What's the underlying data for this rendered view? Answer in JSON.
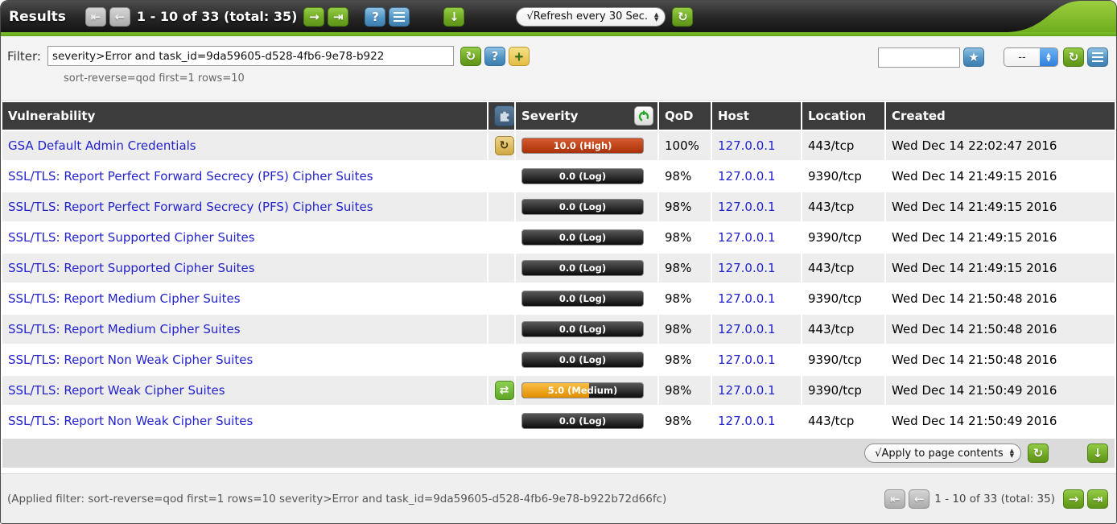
{
  "icons": {
    "first": "⇤",
    "prev": "←",
    "next": "→",
    "last": "⇥",
    "help": "?",
    "download": "↓",
    "refresh": "↻",
    "star": "★",
    "new_note": "+",
    "workaround": "↻",
    "mitigate": "⇄"
  },
  "colors": {
    "accent_green": "#6fa822",
    "severity_high": "#c0401a",
    "severity_medium": "#f0a519",
    "severity_log": "#1a1a1a",
    "link_blue": "#2323cd",
    "header_dark": "#3c3c3c"
  },
  "topbar": {
    "title": "Results",
    "count_text": "1 - 10 of 33 (total: 35)",
    "refresh_select_label": "√Refresh every 30 Sec."
  },
  "filter": {
    "label": "Filter:",
    "value": "severity>Error and task_id=9da59605-d528-4fb6-9e78-b922",
    "subtext": "sort-reverse=qod first=1 rows=10",
    "quick_value": "",
    "saved_select_value": "--"
  },
  "table": {
    "headers": {
      "vulnerability": "Vulnerability",
      "severity": "Severity",
      "qod": "QoD",
      "host": "Host",
      "location": "Location",
      "created": "Created"
    },
    "rows": [
      {
        "vulnerability": "GSA Default Admin Credentials",
        "solution": "workaround",
        "severity": "10.0 (High)",
        "severity_level": "high",
        "qod": "100%",
        "host": "127.0.0.1",
        "location": "443/tcp",
        "created": "Wed Dec 14 22:02:47 2016"
      },
      {
        "vulnerability": "SSL/TLS: Report Perfect Forward Secrecy (PFS) Cipher Suites",
        "solution": null,
        "severity": "0.0 (Log)",
        "severity_level": "log",
        "qod": "98%",
        "host": "127.0.0.1",
        "location": "9390/tcp",
        "created": "Wed Dec 14 21:49:15 2016"
      },
      {
        "vulnerability": "SSL/TLS: Report Perfect Forward Secrecy (PFS) Cipher Suites",
        "solution": null,
        "severity": "0.0 (Log)",
        "severity_level": "log",
        "qod": "98%",
        "host": "127.0.0.1",
        "location": "443/tcp",
        "created": "Wed Dec 14 21:49:15 2016"
      },
      {
        "vulnerability": "SSL/TLS: Report Supported Cipher Suites",
        "solution": null,
        "severity": "0.0 (Log)",
        "severity_level": "log",
        "qod": "98%",
        "host": "127.0.0.1",
        "location": "9390/tcp",
        "created": "Wed Dec 14 21:49:15 2016"
      },
      {
        "vulnerability": "SSL/TLS: Report Supported Cipher Suites",
        "solution": null,
        "severity": "0.0 (Log)",
        "severity_level": "log",
        "qod": "98%",
        "host": "127.0.0.1",
        "location": "443/tcp",
        "created": "Wed Dec 14 21:49:15 2016"
      },
      {
        "vulnerability": "SSL/TLS: Report Medium Cipher Suites",
        "solution": null,
        "severity": "0.0 (Log)",
        "severity_level": "log",
        "qod": "98%",
        "host": "127.0.0.1",
        "location": "9390/tcp",
        "created": "Wed Dec 14 21:50:48 2016"
      },
      {
        "vulnerability": "SSL/TLS: Report Medium Cipher Suites",
        "solution": null,
        "severity": "0.0 (Log)",
        "severity_level": "log",
        "qod": "98%",
        "host": "127.0.0.1",
        "location": "443/tcp",
        "created": "Wed Dec 14 21:50:48 2016"
      },
      {
        "vulnerability": "SSL/TLS: Report Non Weak Cipher Suites",
        "solution": null,
        "severity": "0.0 (Log)",
        "severity_level": "log",
        "qod": "98%",
        "host": "127.0.0.1",
        "location": "9390/tcp",
        "created": "Wed Dec 14 21:50:48 2016"
      },
      {
        "vulnerability": "SSL/TLS: Report Weak Cipher Suites",
        "solution": "mitigate",
        "severity": "5.0 (Medium)",
        "severity_level": "medium",
        "qod": "98%",
        "host": "127.0.0.1",
        "location": "9390/tcp",
        "created": "Wed Dec 14 21:50:49 2016"
      },
      {
        "vulnerability": "SSL/TLS: Report Non Weak Cipher Suites",
        "solution": null,
        "severity": "0.0 (Log)",
        "severity_level": "log",
        "qod": "98%",
        "host": "127.0.0.1",
        "location": "443/tcp",
        "created": "Wed Dec 14 21:50:49 2016"
      }
    ]
  },
  "table_footer": {
    "apply_select_label": "√Apply to page contents"
  },
  "statusbar": {
    "applied_filter": "(Applied filter: sort-reverse=qod first=1 rows=10 severity>Error and task_id=9da59605-d528-4fb6-9e78-b922b72d66fc)",
    "count_text": "1 - 10 of 33 (total: 35)"
  }
}
